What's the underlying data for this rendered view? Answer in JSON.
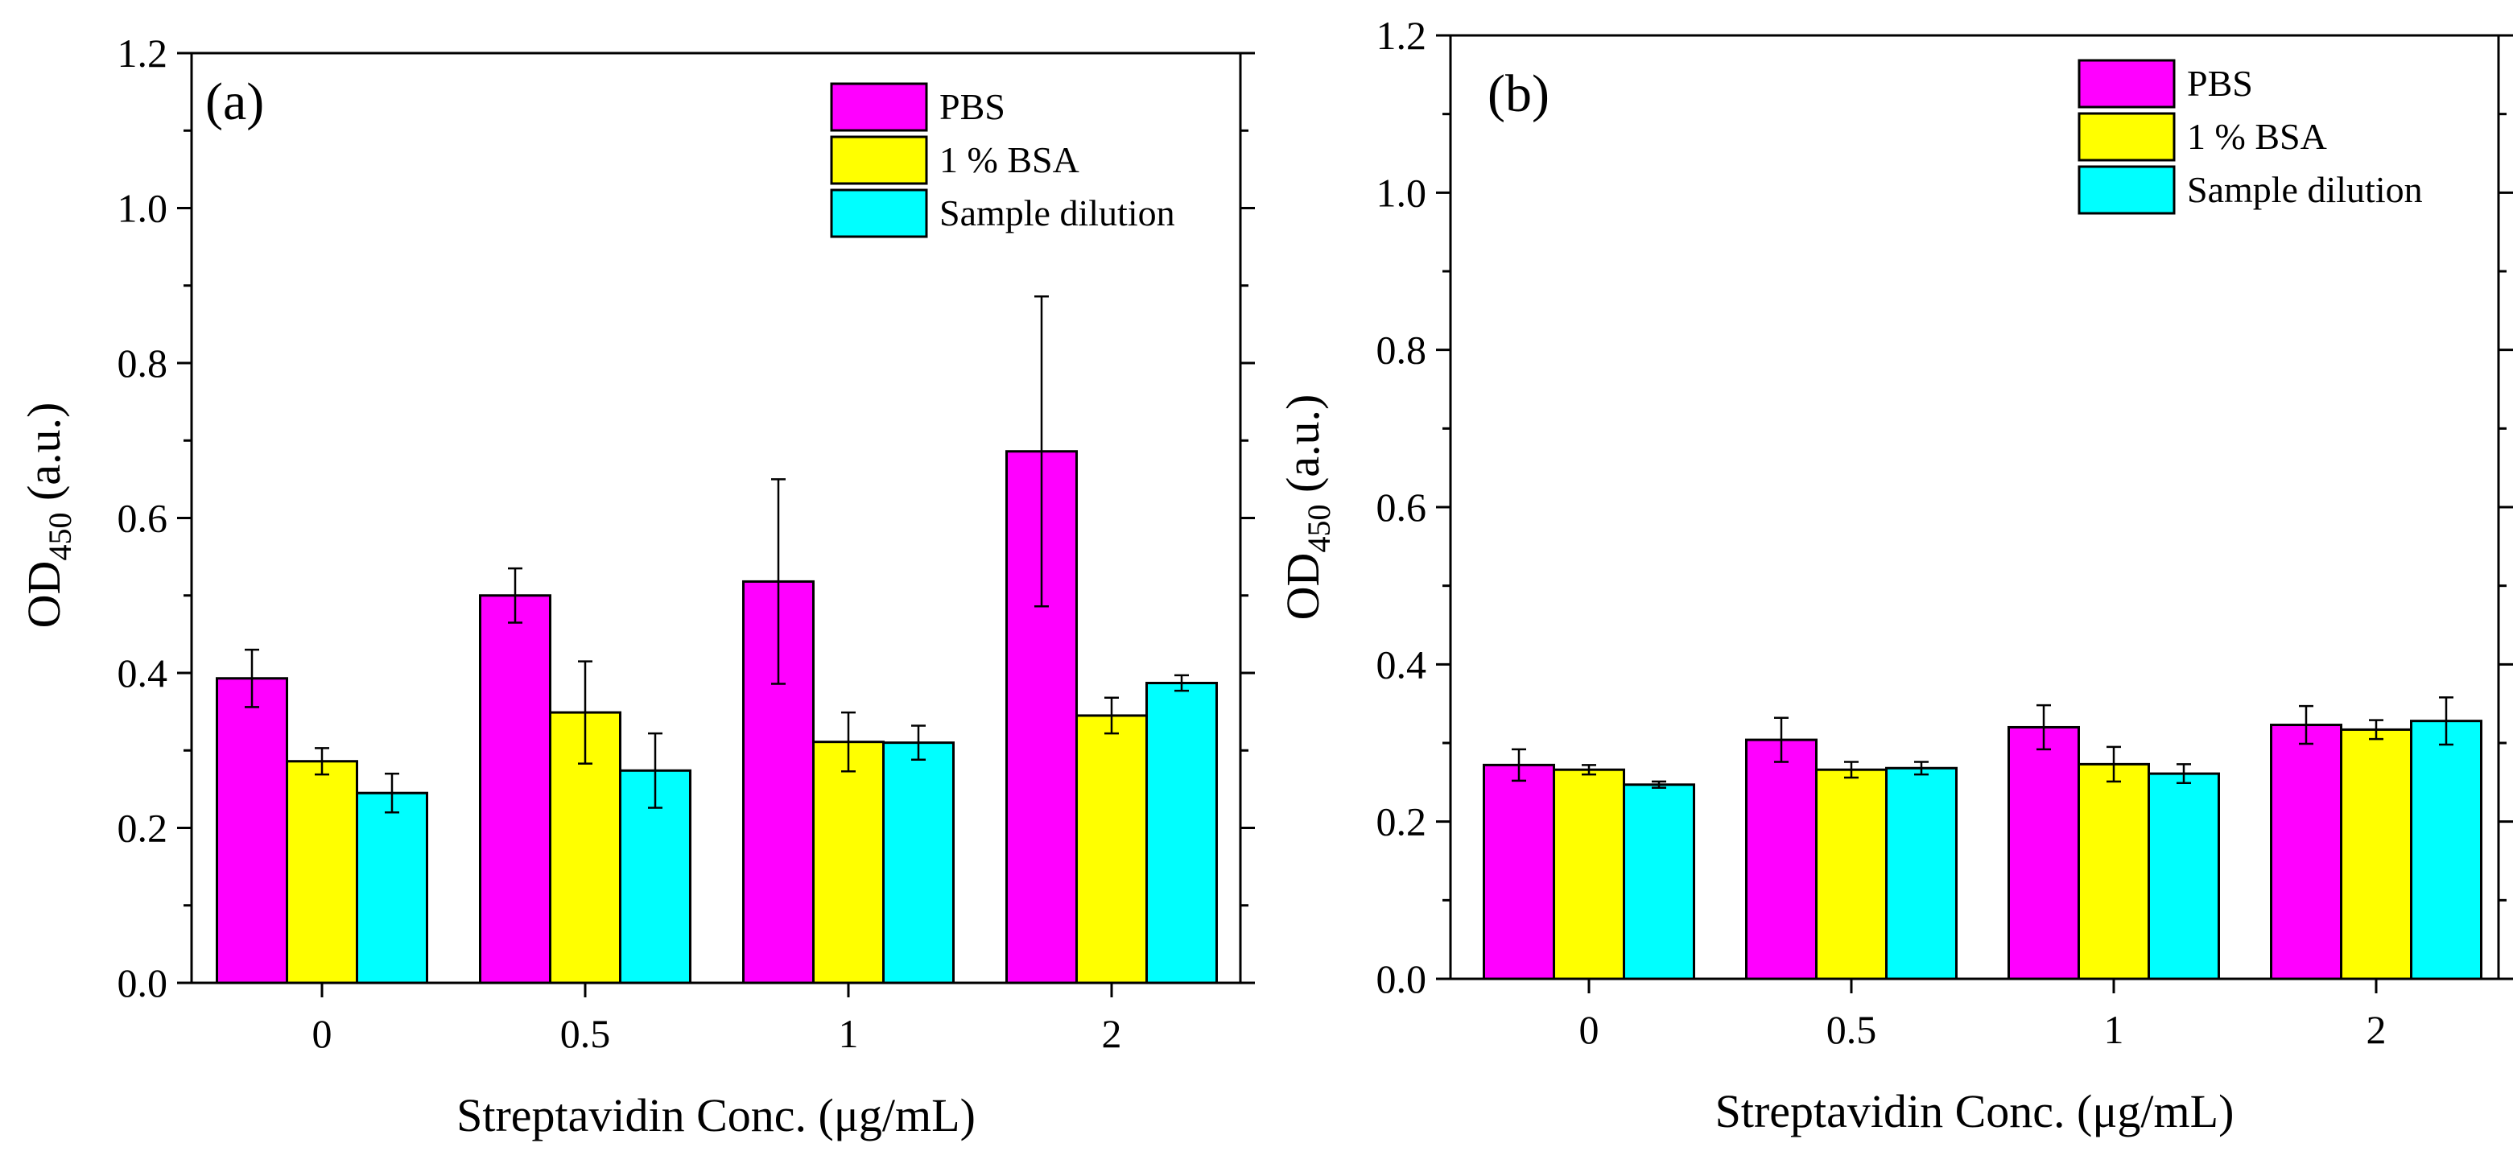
{
  "chart_data": [
    {
      "type": "bar",
      "panel_label": "(a)",
      "categories": [
        "0",
        "0.5",
        "1",
        "2"
      ],
      "xlabel": "Streptavidin Conc. (μg/mL)",
      "ylabel": {
        "main": "OD",
        "subscript": "450",
        "suffix": " (a.u.)"
      },
      "ylim": [
        0,
        1.2
      ],
      "yticks": [
        "0.0",
        "0.2",
        "0.4",
        "0.6",
        "0.8",
        "1.0",
        "1.2"
      ],
      "legend_position": "top-right",
      "series": [
        {
          "name": "PBS",
          "color": "#ff00ff",
          "values": [
            0.393,
            0.5,
            0.518,
            0.686
          ],
          "errors": [
            0.037,
            0.035,
            0.132,
            0.2
          ]
        },
        {
          "name": "1 % BSA",
          "color": "#ffff00",
          "values": [
            0.286,
            0.349,
            0.311,
            0.345
          ],
          "errors": [
            0.017,
            0.066,
            0.038,
            0.023
          ]
        },
        {
          "name": "Sample dilution",
          "color": "#00ffff",
          "values": [
            0.245,
            0.274,
            0.31,
            0.387
          ],
          "errors": [
            0.025,
            0.048,
            0.022,
            0.01
          ]
        }
      ]
    },
    {
      "type": "bar",
      "panel_label": "(b)",
      "categories": [
        "0",
        "0.5",
        "1",
        "2"
      ],
      "xlabel": "Streptavidin Conc. (μg/mL)",
      "ylabel": {
        "main": "OD",
        "subscript": "450",
        "suffix": " (a.u.)"
      },
      "ylim": [
        0,
        1.2
      ],
      "yticks": [
        "0.0",
        "0.2",
        "0.4",
        "0.6",
        "0.8",
        "1.0",
        "1.2"
      ],
      "legend_position": "top-right",
      "series": [
        {
          "name": "PBS",
          "color": "#ff00ff",
          "values": [
            0.272,
            0.304,
            0.32,
            0.323
          ],
          "errors": [
            0.02,
            0.028,
            0.028,
            0.024
          ]
        },
        {
          "name": "1 % BSA",
          "color": "#ffff00",
          "values": [
            0.266,
            0.266,
            0.273,
            0.317
          ],
          "errors": [
            0.006,
            0.01,
            0.022,
            0.012
          ]
        },
        {
          "name": "Sample dilution",
          "color": "#00ffff",
          "values": [
            0.247,
            0.268,
            0.261,
            0.328
          ],
          "errors": [
            0.004,
            0.008,
            0.012,
            0.03
          ]
        }
      ]
    }
  ]
}
